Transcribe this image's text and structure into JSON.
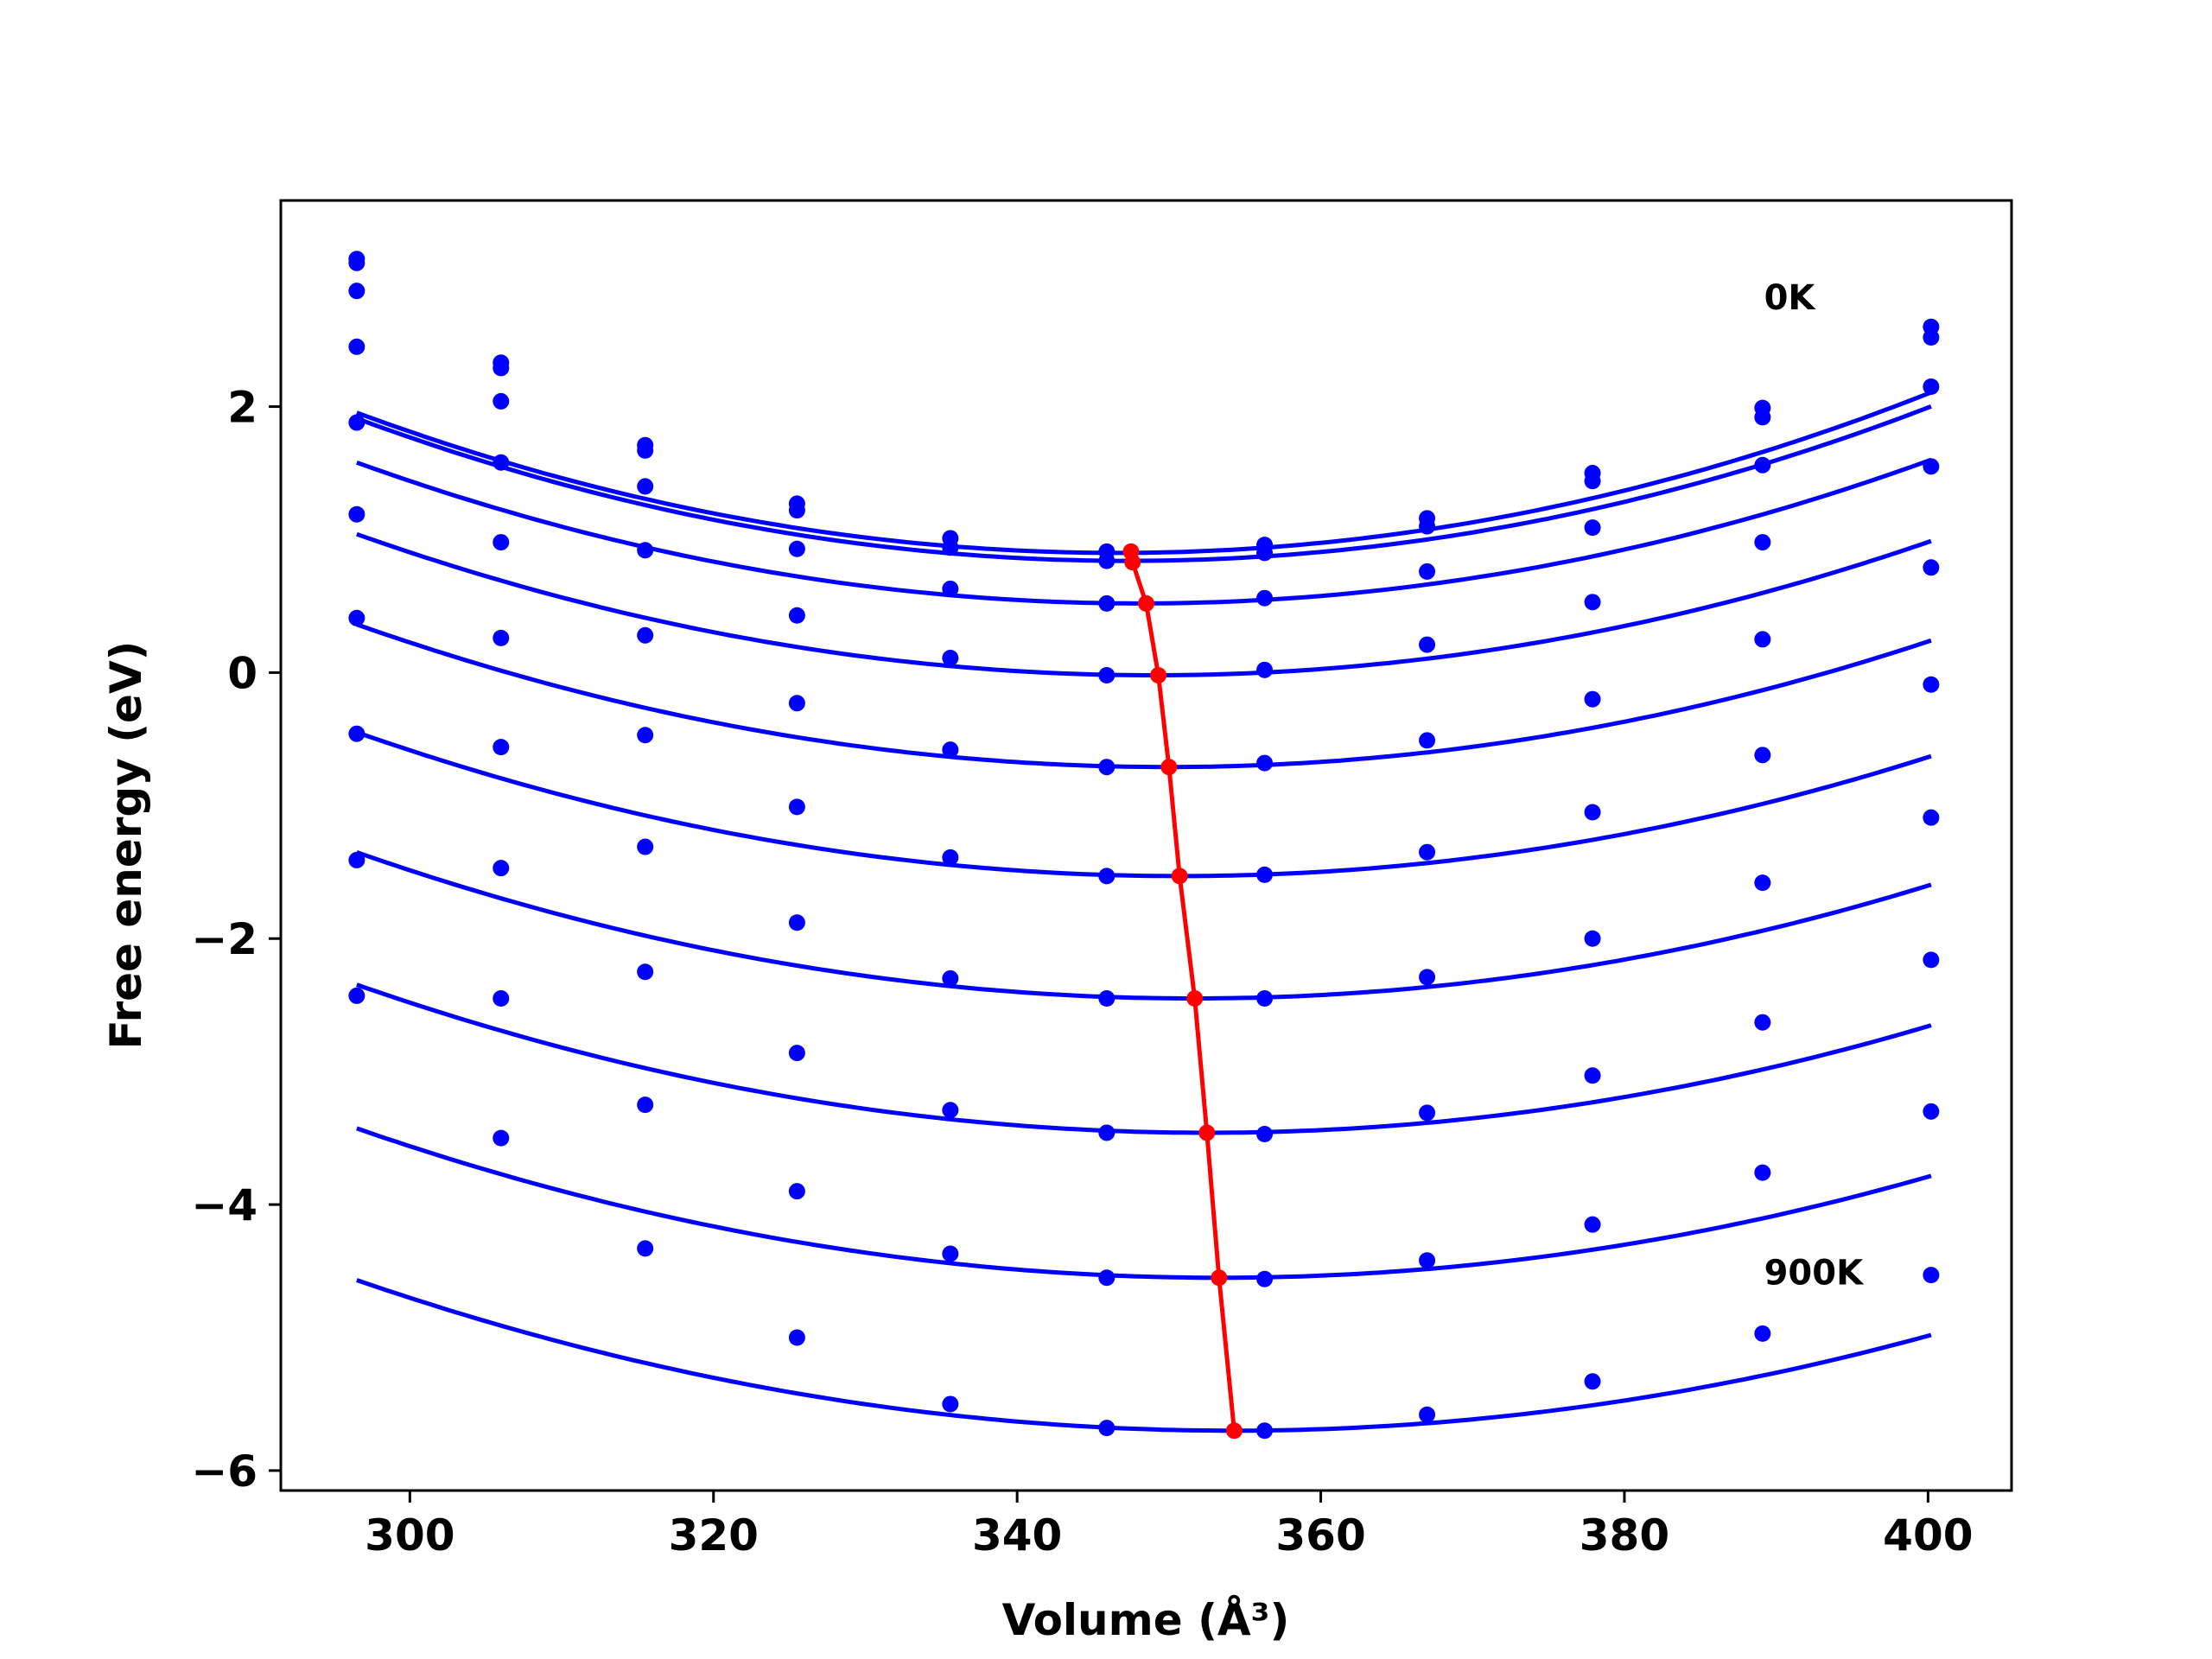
{
  "chart_data": {
    "type": "line",
    "xlabel": "Volume (Å³)",
    "ylabel": "Free energy (eV)",
    "xlim": [
      291.5,
      405.5
    ],
    "ylim": [
      -6.15,
      3.55
    ],
    "xticks": [
      300,
      320,
      340,
      360,
      380,
      400
    ],
    "yticks": [
      2,
      0,
      -2,
      -4,
      -6
    ],
    "x_tick_labels": [
      "300",
      "320",
      "340",
      "360",
      "380",
      "400"
    ],
    "y_tick_labels": [
      "2",
      "0",
      "−2",
      "−4",
      "−6"
    ],
    "annotations": [
      {
        "text": "0K",
        "x": 389.2,
        "y": 2.73
      },
      {
        "text": "900K",
        "x": 389.2,
        "y": -4.6
      }
    ],
    "grid": false,
    "colors": {
      "curves": "#0000ff",
      "minima": "#ff0000",
      "axes": "#000000"
    },
    "volumes": [
      296.5,
      306.0,
      315.5,
      325.5,
      335.6,
      345.9,
      356.3,
      367.0,
      377.9,
      389.1,
      400.2
    ],
    "series": [
      {
        "fit": [
          0.9,
          346.6,
          0.00042
        ],
        "values": [
          3.11,
          2.33,
          1.71,
          1.27,
          1.01,
          0.91,
          0.96,
          1.16,
          1.5,
          1.99,
          2.6
        ]
      },
      {
        "fit": [
          0.84,
          347.3,
          0.000415
        ],
        "values": [
          3.08,
          2.29,
          1.67,
          1.22,
          0.94,
          0.84,
          0.9,
          1.1,
          1.44,
          1.92,
          2.52
        ]
      },
      {
        "fit": [
          0.52,
          348.1,
          0.000398
        ],
        "values": [
          2.87,
          2.04,
          1.4,
          0.93,
          0.63,
          0.52,
          0.56,
          0.76,
          1.09,
          1.56,
          2.15
        ]
      },
      {
        "fit": [
          -0.02,
          349.0,
          0.000385
        ],
        "values": [
          2.45,
          1.58,
          0.92,
          0.43,
          0.11,
          -0.02,
          0.02,
          0.21,
          0.53,
          0.98,
          1.55
        ]
      },
      {
        "fit": [
          -0.71,
          349.9,
          0.000376
        ],
        "values": [
          1.88,
          0.98,
          0.28,
          -0.23,
          -0.58,
          -0.71,
          -0.68,
          -0.51,
          -0.2,
          0.25,
          0.79
        ]
      },
      {
        "fit": [
          -1.53,
          350.7,
          0.000368
        ],
        "values": [
          1.19,
          0.26,
          -0.47,
          -1.01,
          -1.39,
          -1.53,
          -1.52,
          -1.35,
          -1.05,
          -0.62,
          -0.09
        ]
      },
      {
        "fit": [
          -2.45,
          351.6,
          0.000362
        ],
        "values": [
          0.41,
          -0.56,
          -1.31,
          -1.88,
          -2.3,
          -2.45,
          -2.45,
          -2.29,
          -2.0,
          -1.58,
          -1.09
        ]
      },
      {
        "fit": [
          -3.46,
          352.5,
          0.000355
        ],
        "values": [
          -0.46,
          -1.47,
          -2.25,
          -2.86,
          -3.29,
          -3.46,
          -3.47,
          -3.31,
          -3.03,
          -2.63,
          -2.16
        ]
      },
      {
        "fit": [
          -4.55,
          353.3,
          0.000348
        ],
        "values": [
          -1.41,
          -2.45,
          -3.25,
          -3.9,
          -4.37,
          -4.55,
          -4.56,
          -4.42,
          -4.15,
          -3.76,
          -3.3
        ]
      },
      {
        "fit": [
          -5.7,
          354.2,
          0.00034
        ],
        "values": [
          -2.43,
          -3.5,
          -4.33,
          -5.0,
          -5.5,
          -5.68,
          -5.7,
          -5.58,
          -5.33,
          -4.97,
          -4.53
        ]
      }
    ],
    "minima_line": {
      "x": [
        347.5,
        347.6,
        348.5,
        349.3,
        350.0,
        350.7,
        351.7,
        352.5,
        353.3,
        354.3
      ],
      "y": [
        0.91,
        0.83,
        0.52,
        -0.02,
        -0.71,
        -1.53,
        -2.45,
        -3.46,
        -4.55,
        -5.7
      ]
    }
  }
}
